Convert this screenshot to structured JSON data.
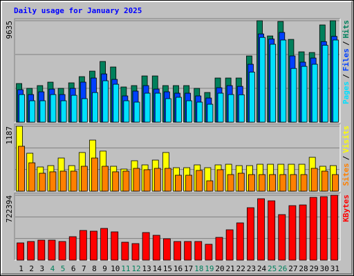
{
  "chart_data": [
    {
      "type": "bar",
      "title": "Daily usage for January 2025",
      "ylim": [
        0,
        9635
      ],
      "yticks": [
        9635
      ],
      "legend_separator": "/",
      "series": [
        {
          "name": "Hits",
          "color": "#00805C",
          "values": [
            3668,
            3210,
            3472,
            3799,
            3210,
            3734,
            4323,
            4847,
            5764,
            5240,
            3341,
            3472,
            4389,
            4389,
            3472,
            3472,
            3472,
            3210,
            2817,
            4192,
            4192,
            4192,
            6288,
            9635,
            8188,
            9563,
            7860,
            6681,
            6616,
            9236,
            9635
          ]
        },
        {
          "name": "Files",
          "color": "#0040FF",
          "values": [
            3080,
            2620,
            2880,
            3140,
            2620,
            3210,
            3800,
            4190,
            4580,
            4060,
            2490,
            2950,
            3470,
            3140,
            2880,
            2750,
            2750,
            2490,
            2290,
            3270,
            3470,
            3400,
            5500,
            8380,
            7900,
            8520,
            6290,
            5700,
            6090,
            7650,
            8150
          ]
        },
        {
          "name": "Pages",
          "color": "#00E0FF",
          "values": [
            2620,
            2030,
            2030,
            2620,
            2030,
            2550,
            2230,
            2810,
            3930,
            3600,
            2030,
            1900,
            2750,
            2750,
            2230,
            2360,
            2030,
            1900,
            1700,
            2750,
            2620,
            2600,
            4750,
            8050,
            7400,
            7800,
            5100,
            5300,
            5500,
            7300,
            7800
          ]
        }
      ]
    },
    {
      "type": "bar",
      "ylim": [
        0,
        1187
      ],
      "yticks": [
        1187
      ],
      "legend_separator": "/",
      "series": [
        {
          "name": "Visits",
          "color": "#FFFF00",
          "values": [
            1187,
            694,
            442,
            467,
            606,
            467,
            707,
            934,
            733,
            455,
            404,
            556,
            480,
            568,
            707,
            429,
            429,
            480,
            429,
            480,
            492,
            467,
            467,
            492,
            492,
            492,
            492,
            492,
            619,
            455,
            467
          ]
        },
        {
          "name": "Sites",
          "color": "#FF8000",
          "values": [
            821,
            518,
            328,
            354,
            366,
            366,
            455,
            606,
            455,
            354,
            366,
            417,
            392,
            417,
            417,
            291,
            291,
            379,
            189,
            392,
            303,
            328,
            303,
            303,
            303,
            303,
            303,
            303,
            417,
            366,
            303
          ]
        }
      ]
    },
    {
      "type": "bar",
      "ylim": [
        0,
        722394
      ],
      "yticks": [
        722394
      ],
      "categories": [
        "1",
        "2",
        "3",
        "4",
        "5",
        "6",
        "7",
        "8",
        "9",
        "10",
        "11",
        "12",
        "13",
        "14",
        "15",
        "16",
        "17",
        "18",
        "19",
        "20",
        "21",
        "22",
        "23",
        "24",
        "25",
        "26",
        "27",
        "28",
        "29",
        "30",
        "31"
      ],
      "category_colors": [
        "#000000",
        "#000000",
        "#000000",
        "#00805C",
        "#00805C",
        "#000000",
        "#000000",
        "#000000",
        "#000000",
        "#000000",
        "#00805C",
        "#00805C",
        "#000000",
        "#000000",
        "#000000",
        "#000000",
        "#000000",
        "#00805C",
        "#00805C",
        "#000000",
        "#000000",
        "#000000",
        "#000000",
        "#000000",
        "#00805C",
        "#00805C",
        "#000000",
        "#000000",
        "#000000",
        "#000000",
        "#000000"
      ],
      "series": [
        {
          "name": "KBytes",
          "color": "#FF0000",
          "values": [
            192100,
            207500,
            222900,
            222900,
            207500,
            261300,
            330500,
            322800,
            353500,
            315100,
            199800,
            184400,
            307400,
            276700,
            238200,
            207500,
            207500,
            207500,
            176800,
            253600,
            338100,
            415000,
            584100,
            684000,
            660900,
            507200,
            607100,
            614800,
            699300,
            707000,
            722394
          ]
        }
      ]
    }
  ]
}
